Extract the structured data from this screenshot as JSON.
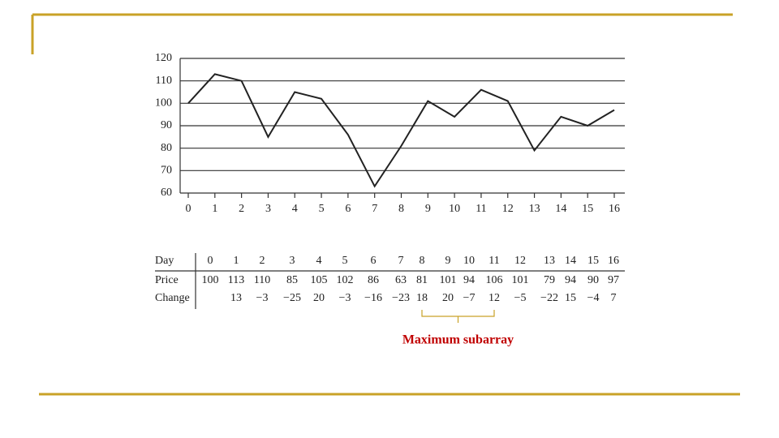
{
  "chart_data": {
    "type": "line",
    "x": [
      0,
      1,
      2,
      3,
      4,
      5,
      6,
      7,
      8,
      9,
      10,
      11,
      12,
      13,
      14,
      15,
      16
    ],
    "series": [
      {
        "name": "Price",
        "color": "#222222",
        "values": [
          100,
          113,
          110,
          85,
          105,
          102,
          86,
          63,
          81,
          101,
          94,
          106,
          101,
          79,
          94,
          90,
          97
        ]
      }
    ],
    "xlim": [
      0,
      16
    ],
    "xticks": [
      0,
      1,
      2,
      3,
      4,
      5,
      6,
      7,
      8,
      9,
      10,
      11,
      12,
      13,
      14,
      15,
      16
    ],
    "ylim": [
      60,
      120
    ],
    "yticks": [
      60,
      70,
      80,
      90,
      100,
      110,
      120
    ],
    "grid": true
  },
  "table": {
    "row_labels": [
      "Day",
      "Price",
      "Change"
    ],
    "change": [
      null,
      "13",
      "−3",
      "−25",
      "20",
      "−3",
      "−16",
      "−23",
      "18",
      "20",
      "−7",
      "12",
      "−5",
      "−22",
      "15",
      "−4",
      "7"
    ]
  },
  "annotation": {
    "text": "Maximum subarray",
    "start": 8,
    "end": 11,
    "color": "#c00000"
  }
}
